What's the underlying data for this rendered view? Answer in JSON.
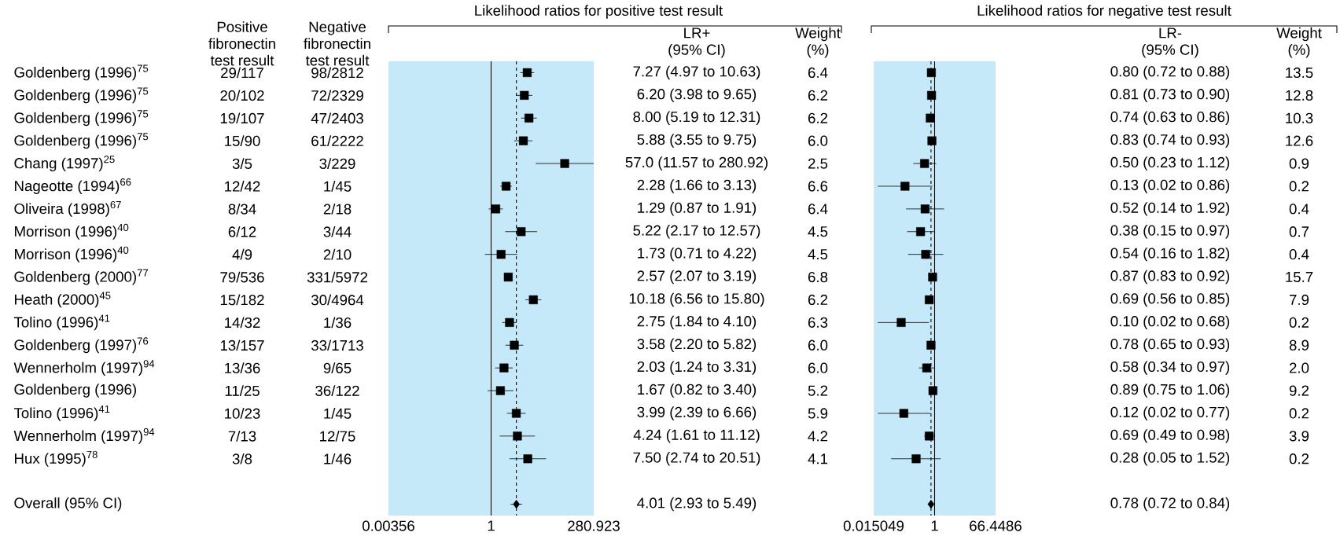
{
  "chart_data": [
    {
      "type": "other",
      "categories": [
        "Positive fibronectin test result",
        "Negative fibronectin test result"
      ],
      "y_categories": [
        "Goldenberg (1996)$^{75}$",
        "Goldenberg (1996)$^{75}$",
        "Goldenberg (1996)$^{75}$",
        "Goldenberg (1996)$^{75}$",
        "Chang (1997)$^{25}$",
        "Nageotte (1994)$^{66}$",
        "Oliveira (1998)$^{67}$",
        "Morrison (1996)$^{40}$",
        "Morrison (1996)$^{40}$",
        "Goldenberg (2000)$^{77}$",
        "Heath (2000)$^{45}$",
        "Tolino (1996)$^{41}$",
        "Goldenberg (1997)$^{76}$",
        "Wennerholm (1997)$^{94}$",
        "Goldenberg (1996)",
        "Tolino (1996)$^{41}$",
        "Wennerholm (1997)$^{94}$",
        "Hux (1995)$^{78}$",
        null,
        "Overall (95% CI)"
      ],
      "cell_labels": [
        [
          "29/117",
          "98/2812"
        ],
        [
          "20/102",
          "72/2329"
        ],
        [
          "19/107",
          "47/2403"
        ],
        [
          "15/90",
          "61/2222"
        ],
        [
          "3/5",
          "3/229"
        ],
        [
          "12/42",
          "1/45"
        ],
        [
          "8/34",
          "2/18"
        ],
        [
          "6/12",
          "3/44"
        ],
        [
          "4/9",
          "2/10"
        ],
        [
          "79/536",
          "331/5972"
        ],
        [
          "15/182",
          "30/4964"
        ],
        [
          "14/32",
          "1/36"
        ],
        [
          "13/157",
          "33/1713"
        ],
        [
          "13/36",
          "9/65"
        ],
        [
          "11/25",
          "36/122"
        ],
        [
          "10/23",
          "1/45"
        ],
        [
          "7/13",
          "12/75"
        ],
        [
          "3/8",
          "1/46"
        ],
        [
          null,
          null
        ],
        [
          null,
          null
        ]
      ]
    },
    {
      "type": "scatter",
      "title": "Likelihood ratios for positive test result",
      "orientation": "horizontal",
      "log": "x",
      "marker": "square",
      "categories": [
        null,
        null,
        null,
        null,
        null,
        null,
        null,
        null,
        null,
        null,
        null,
        null,
        null,
        null,
        null,
        null,
        null,
        null,
        null,
        null
      ],
      "xlim": [
        0.00356,
        280.923
      ],
      "xticks": [
        0.00356,
        1,
        280.923
      ],
      "bands": [
        {
          "axis": "x",
          "from": 0.00356,
          "to": 280.923,
          "color": "#c6e9fa"
        }
      ],
      "ref_lines": [
        {
          "axis": "x",
          "value": 1,
          "line_style": "solid"
        },
        {
          "axis": "x",
          "value": 4.01,
          "line_style": "dashed"
        }
      ],
      "series": [
        {
          "color": "#000000",
          "values": [
            7.27,
            6.2,
            8.0,
            5.88,
            57.0,
            2.28,
            1.29,
            5.22,
            1.73,
            2.57,
            10.18,
            2.75,
            3.58,
            2.03,
            1.67,
            3.99,
            4.24,
            7.5,
            null,
            null
          ],
          "errors": [
            [
              4.97,
              10.63
            ],
            [
              3.98,
              9.65
            ],
            [
              5.19,
              12.31
            ],
            [
              3.55,
              9.75
            ],
            [
              11.57,
              280.92
            ],
            [
              1.66,
              3.13
            ],
            [
              0.87,
              1.91
            ],
            [
              2.17,
              12.57
            ],
            [
              0.71,
              4.22
            ],
            [
              2.07,
              3.19
            ],
            [
              6.56,
              15.8
            ],
            [
              1.84,
              4.1
            ],
            [
              2.2,
              5.82
            ],
            [
              1.24,
              3.31
            ],
            [
              0.82,
              3.4
            ],
            [
              2.39,
              6.66
            ],
            [
              1.61,
              11.12
            ],
            [
              2.74,
              20.51
            ],
            null,
            null
          ]
        },
        {
          "color": "#000000",
          "marker": "diamond",
          "values": [
            null,
            null,
            null,
            null,
            null,
            null,
            null,
            null,
            null,
            null,
            null,
            null,
            null,
            null,
            null,
            null,
            null,
            null,
            null,
            4.01
          ],
          "errors": [
            null,
            null,
            null,
            null,
            null,
            null,
            null,
            null,
            null,
            null,
            null,
            null,
            null,
            null,
            null,
            null,
            null,
            null,
            null,
            [
              2.93,
              5.49
            ]
          ]
        }
      ]
    },
    {
      "type": "other",
      "categories": [
        "LR+ (95% CI)",
        "Weight (%)"
      ],
      "cell_labels": [
        [
          "7.27 (4.97 to 10.63)",
          "6.4"
        ],
        [
          "6.20 (3.98 to 9.65)",
          "6.2"
        ],
        [
          "8.00 (5.19 to 12.31)",
          "6.2"
        ],
        [
          "5.88 (3.55 to 9.75)",
          "6.0"
        ],
        [
          "57.0 (11.57 to 280.92)",
          "2.5"
        ],
        [
          "2.28 (1.66 to 3.13)",
          "6.6"
        ],
        [
          "1.29 (0.87 to 1.91)",
          "6.4"
        ],
        [
          "5.22 (2.17 to 12.57)",
          "4.5"
        ],
        [
          "1.73 (0.71 to 4.22)",
          "4.5"
        ],
        [
          "2.57 (2.07 to 3.19)",
          "6.8"
        ],
        [
          "10.18 (6.56 to 15.80)",
          "6.2"
        ],
        [
          "2.75 (1.84 to 4.10)",
          "6.3"
        ],
        [
          "3.58 (2.20 to 5.82)",
          "6.0"
        ],
        [
          "2.03 (1.24 to 3.31)",
          "6.0"
        ],
        [
          "1.67 (0.82 to 3.40)",
          "5.2"
        ],
        [
          "3.99 (2.39 to 6.66)",
          "5.9"
        ],
        [
          "4.24 (1.61 to 11.12)",
          "4.2"
        ],
        [
          "7.50 (2.74 to 20.51)",
          "4.1"
        ],
        [
          null,
          null
        ],
        [
          "4.01 (2.93 to 5.49)",
          null
        ]
      ]
    },
    {
      "type": "scatter",
      "title": "Likelihood ratios for negative test result",
      "orientation": "horizontal",
      "log": "x",
      "marker": "square",
      "categories": [
        null,
        null,
        null,
        null,
        null,
        null,
        null,
        null,
        null,
        null,
        null,
        null,
        null,
        null,
        null,
        null,
        null,
        null,
        null,
        null
      ],
      "xlim": [
        0.015049,
        66.4486
      ],
      "xticks": [
        0.015049,
        1,
        66.4486
      ],
      "bands": [
        {
          "axis": "x",
          "from": 0.015049,
          "to": 66.4486,
          "color": "#c6e9fa"
        }
      ],
      "ref_lines": [
        {
          "axis": "x",
          "value": 1,
          "line_style": "solid"
        },
        {
          "axis": "x",
          "value": 0.78,
          "line_style": "dashed"
        }
      ],
      "series": [
        {
          "color": "#000000",
          "values": [
            0.8,
            0.81,
            0.74,
            0.83,
            0.5,
            0.13,
            0.52,
            0.38,
            0.54,
            0.87,
            0.69,
            0.1,
            0.78,
            0.58,
            0.89,
            0.12,
            0.69,
            0.28,
            null,
            null
          ],
          "errors": [
            null,
            null,
            null,
            [
              0.74,
              0.93
            ],
            [
              0.23,
              1.12
            ],
            [
              0.02,
              0.86
            ],
            [
              0.14,
              1.92
            ],
            [
              0.15,
              0.97
            ],
            [
              0.16,
              1.82
            ],
            [
              0.83,
              0.92
            ],
            [
              0.56,
              0.85
            ],
            [
              0.02,
              0.68
            ],
            [
              0.65,
              0.93
            ],
            [
              0.34,
              0.97
            ],
            [
              0.75,
              1.06
            ],
            [
              0.02,
              0.77
            ],
            [
              0.49,
              0.98
            ],
            [
              0.05,
              1.52
            ],
            null,
            null
          ]
        },
        {
          "color": "#000000",
          "marker": "diamond",
          "values": [
            null,
            null,
            null,
            null,
            null,
            null,
            null,
            null,
            null,
            null,
            null,
            null,
            null,
            null,
            null,
            null,
            null,
            null,
            null,
            0.78
          ],
          "errors": [
            null,
            null,
            null,
            null,
            null,
            null,
            null,
            null,
            null,
            null,
            null,
            null,
            null,
            null,
            null,
            null,
            null,
            null,
            null,
            [
              0.72,
              0.84
            ]
          ]
        }
      ]
    },
    {
      "type": "other",
      "categories": [
        "LR- (95% CI)",
        "Weight (%)"
      ],
      "cell_labels": [
        [
          "0.80 (0.72 to 0.88)",
          "13.5"
        ],
        [
          "0.81 (0.73 to 0.90)",
          "12.8"
        ],
        [
          "0.74 (0.63 to 0.86)",
          "10.3"
        ],
        [
          "0.83 (0.74 to 0.93)",
          "12.6"
        ],
        [
          "0.50 (0.23 to 1.12)",
          "0.9"
        ],
        [
          "0.13 (0.02 to 0.86)",
          "0.2"
        ],
        [
          "0.52 (0.14 to 1.92)",
          "0.4"
        ],
        [
          "0.38 (0.15 to 0.97)",
          "0.7"
        ],
        [
          "0.54 (0.16 to 1.82)",
          "0.4"
        ],
        [
          "0.87 (0.83 to 0.92)",
          "15.7"
        ],
        [
          "0.69 (0.56 to 0.85)",
          "7.9"
        ],
        [
          "0.10 (0.02 to 0.68)",
          "0.2"
        ],
        [
          "0.78 (0.65 to 0.93)",
          "8.9"
        ],
        [
          "0.58 (0.34 to 0.97)",
          "2.0"
        ],
        [
          "0.89 (0.75 to 1.06)",
          "9.2"
        ],
        [
          "0.12 (0.02 to 0.77)",
          "0.2"
        ],
        [
          "0.69 (0.49 to 0.98)",
          "3.9"
        ],
        [
          "0.28 (0.05 to 1.52)",
          "0.2"
        ],
        [
          null,
          null
        ],
        [
          "0.78 (0.72 to 0.84)",
          null
        ]
      ]
    }
  ]
}
